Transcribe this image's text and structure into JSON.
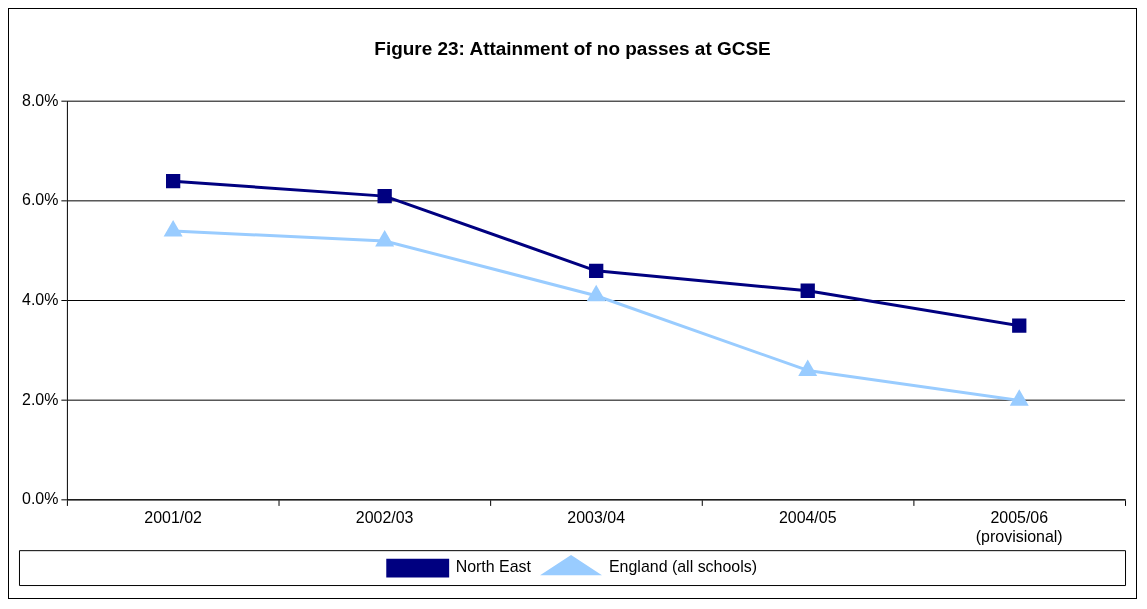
{
  "chart_data": {
    "type": "line",
    "title": "Figure 23: Attainment of no passes at GCSE",
    "categories": [
      "2001/02",
      "2002/03",
      "2003/04",
      "2004/05",
      "2005/06\n(provisional)"
    ],
    "series": [
      {
        "name": "North East",
        "color": "#000080",
        "marker": "square",
        "values": [
          6.4,
          6.1,
          4.6,
          4.2,
          3.5
        ]
      },
      {
        "name": "England (all schools)",
        "color": "#99ccff",
        "marker": "triangle",
        "values": [
          5.4,
          5.2,
          4.1,
          2.6,
          2.0
        ]
      }
    ],
    "ylim": [
      0,
      8
    ],
    "yticks": [
      {
        "value": 0,
        "label": "0.0%"
      },
      {
        "value": 2,
        "label": "2.0%"
      },
      {
        "value": 4,
        "label": "4.0%"
      },
      {
        "value": 6,
        "label": "6.0%"
      },
      {
        "value": 8,
        "label": "8.0%"
      }
    ],
    "grid": "y",
    "legend": "bottom",
    "line_style": "solid"
  }
}
